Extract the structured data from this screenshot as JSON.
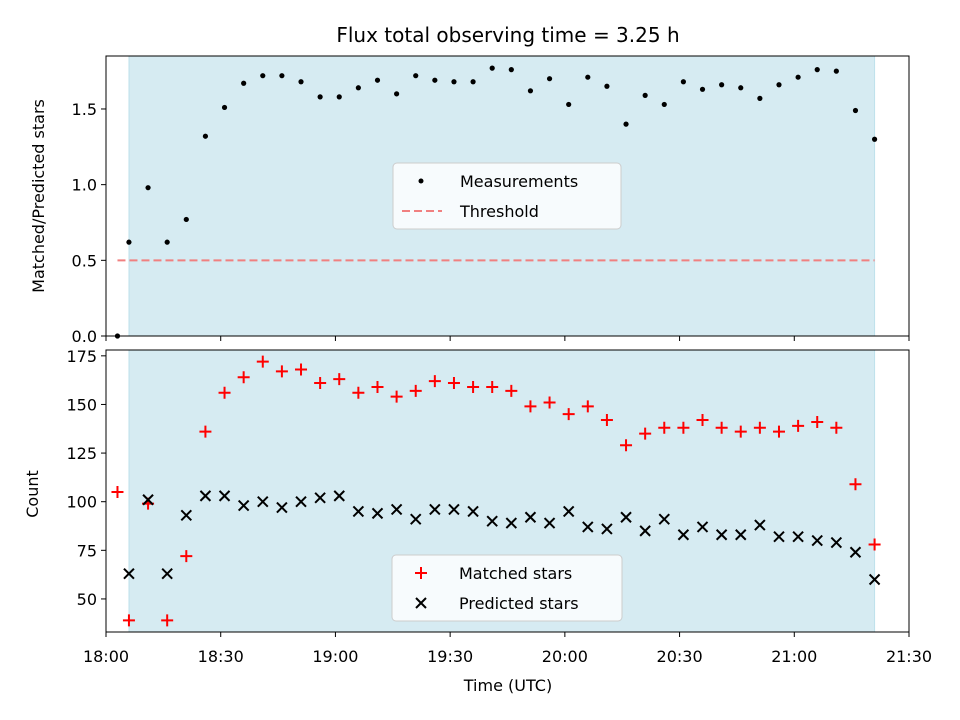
{
  "chart_data": [
    {
      "type": "scatter",
      "title": "Flux total observing time = 3.25 h",
      "xlabel": "",
      "ylabel": "Matched/Predicted stars",
      "xlim": [
        "18:00",
        "21:30"
      ],
      "ylim": [
        0.0,
        1.85
      ],
      "yticks": [
        "0.0",
        "0.5",
        "1.0",
        "1.5"
      ],
      "grid": false,
      "legend_position": "center",
      "shaded_span": {
        "from": "18:06",
        "to": "21:21",
        "color": "#add8e6"
      },
      "series": [
        {
          "name": "Measurements",
          "marker": "dot",
          "color": "#000000",
          "x": [
            "18:03",
            "18:06",
            "18:11",
            "18:16",
            "18:21",
            "18:26",
            "18:31",
            "18:36",
            "18:41",
            "18:46",
            "18:51",
            "18:56",
            "19:01",
            "19:06",
            "19:11",
            "19:16",
            "19:21",
            "19:26",
            "19:31",
            "19:36",
            "19:41",
            "19:46",
            "19:51",
            "19:56",
            "20:01",
            "20:06",
            "20:11",
            "20:16",
            "20:21",
            "20:26",
            "20:31",
            "20:36",
            "20:41",
            "20:46",
            "20:51",
            "20:56",
            "21:01",
            "21:06",
            "21:11",
            "21:16",
            "21:21"
          ],
          "y": [
            0.0,
            0.62,
            0.98,
            0.62,
            0.77,
            1.32,
            1.51,
            1.67,
            1.72,
            1.72,
            1.68,
            1.58,
            1.58,
            1.64,
            1.69,
            1.6,
            1.72,
            1.69,
            1.68,
            1.68,
            1.77,
            1.76,
            1.62,
            1.7,
            1.53,
            1.71,
            1.65,
            1.4,
            1.59,
            1.53,
            1.68,
            1.63,
            1.66,
            1.64,
            1.57,
            1.66,
            1.71,
            1.76,
            1.75,
            1.49,
            1.3
          ]
        },
        {
          "name": "Threshold",
          "type": "dashed-line",
          "color": "#f08080",
          "x": [
            "18:03",
            "21:21"
          ],
          "y": [
            0.5,
            0.5
          ]
        }
      ]
    },
    {
      "type": "scatter",
      "title": "",
      "xlabel": "Time (UTC)",
      "ylabel": "Count",
      "xlim": [
        "18:00",
        "21:30"
      ],
      "ylim": [
        33,
        178
      ],
      "xticks": [
        "18:00",
        "18:30",
        "19:00",
        "19:30",
        "20:00",
        "20:30",
        "21:00",
        "21:30"
      ],
      "yticks": [
        "50",
        "75",
        "100",
        "125",
        "150",
        "175"
      ],
      "grid": false,
      "legend_position": "bottom-center",
      "shaded_span": {
        "from": "18:06",
        "to": "21:21",
        "color": "#add8e6"
      },
      "series": [
        {
          "name": "Matched stars",
          "marker": "plus",
          "color": "#ff0000",
          "x": [
            "18:03",
            "18:06",
            "18:11",
            "18:16",
            "18:21",
            "18:26",
            "18:31",
            "18:36",
            "18:41",
            "18:46",
            "18:51",
            "18:56",
            "19:01",
            "19:06",
            "19:11",
            "19:16",
            "19:21",
            "19:26",
            "19:31",
            "19:36",
            "19:41",
            "19:46",
            "19:51",
            "19:56",
            "20:01",
            "20:06",
            "20:11",
            "20:16",
            "20:21",
            "20:26",
            "20:31",
            "20:36",
            "20:41",
            "20:46",
            "20:51",
            "20:56",
            "21:01",
            "21:06",
            "21:11",
            "21:16",
            "21:21"
          ],
          "y": [
            105,
            39,
            99,
            39,
            72,
            136,
            156,
            164,
            172,
            167,
            168,
            161,
            163,
            156,
            159,
            154,
            157,
            162,
            161,
            159,
            159,
            157,
            149,
            151,
            145,
            149,
            142,
            129,
            135,
            138,
            138,
            142,
            138,
            136,
            138,
            136,
            139,
            141,
            138,
            109,
            78
          ]
        },
        {
          "name": "Predicted stars",
          "marker": "x",
          "color": "#000000",
          "x": [
            "18:06",
            "18:11",
            "18:16",
            "18:21",
            "18:26",
            "18:31",
            "18:36",
            "18:41",
            "18:46",
            "18:51",
            "18:56",
            "19:01",
            "19:06",
            "19:11",
            "19:16",
            "19:21",
            "19:26",
            "19:31",
            "19:36",
            "19:41",
            "19:46",
            "19:51",
            "19:56",
            "20:01",
            "20:06",
            "20:11",
            "20:16",
            "20:21",
            "20:26",
            "20:31",
            "20:36",
            "20:41",
            "20:46",
            "20:51",
            "20:56",
            "21:01",
            "21:06",
            "21:11",
            "21:16",
            "21:21"
          ],
          "y": [
            63,
            101,
            63,
            93,
            103,
            103,
            98,
            100,
            97,
            100,
            102,
            103,
            95,
            94,
            96,
            91,
            96,
            96,
            95,
            90,
            89,
            92,
            89,
            95,
            87,
            86,
            92,
            85,
            91,
            83,
            87,
            83,
            83,
            88,
            82,
            82,
            80,
            79,
            74,
            60
          ]
        }
      ]
    }
  ]
}
